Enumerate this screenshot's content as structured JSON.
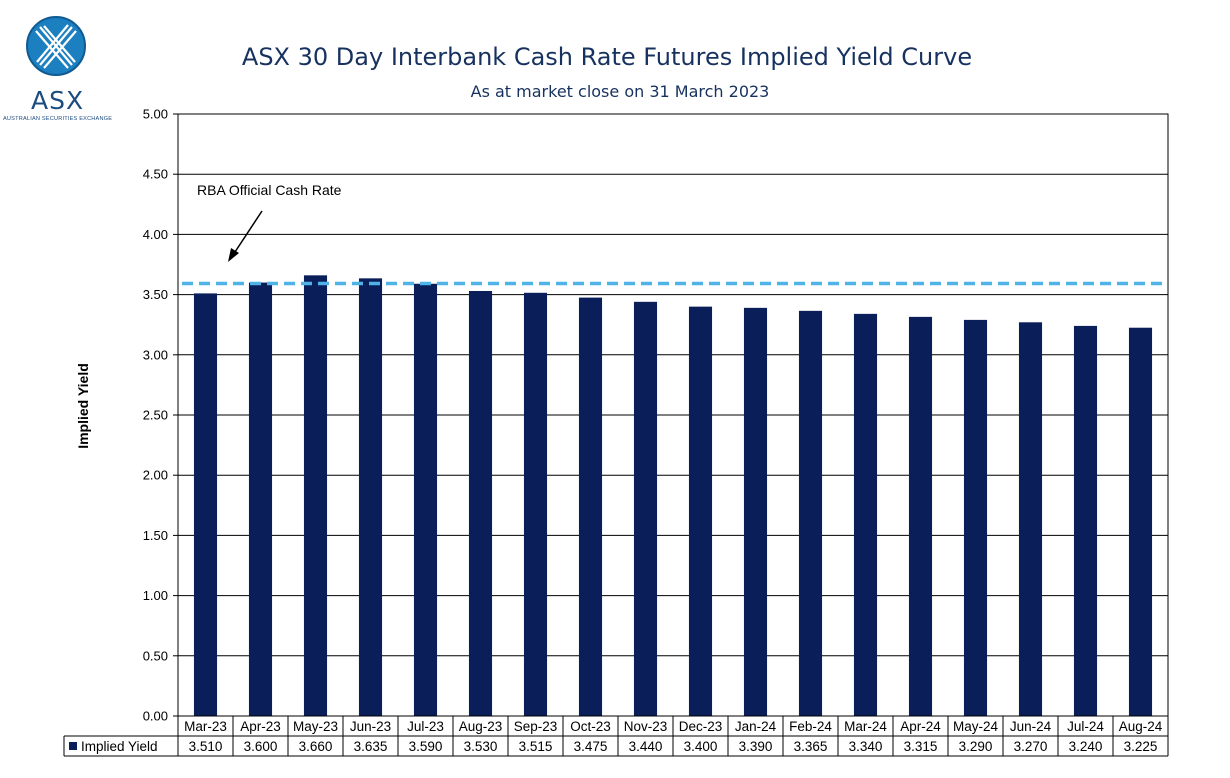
{
  "logo": {
    "text": "ASX",
    "subtitle": "AUSTRALIAN SECURITIES EXCHANGE",
    "color": "#1b4c80",
    "icon": "asx-x-icon"
  },
  "chart_data": {
    "type": "bar",
    "title": "ASX 30 Day Interbank Cash Rate Futures Implied Yield Curve",
    "subtitle": "As at market close on 31 March 2023",
    "ylabel": "Implied Yield",
    "xlabel": "",
    "ylim": [
      0,
      5
    ],
    "ytick_step": 0.5,
    "ytick_labels": [
      "0.00",
      "0.50",
      "1.00",
      "1.50",
      "2.00",
      "2.50",
      "3.00",
      "3.50",
      "4.00",
      "4.50",
      "5.00"
    ],
    "grid": true,
    "categories": [
      "Mar-23",
      "Apr-23",
      "May-23",
      "Jun-23",
      "Jul-23",
      "Aug-23",
      "Sep-23",
      "Oct-23",
      "Nov-23",
      "Dec-23",
      "Jan-24",
      "Feb-24",
      "Mar-24",
      "Apr-24",
      "May-24",
      "Jun-24",
      "Jul-24",
      "Aug-24"
    ],
    "series": [
      {
        "name": "Implied Yield",
        "color": "#0a1e5a",
        "values": [
          3.51,
          3.6,
          3.66,
          3.635,
          3.59,
          3.53,
          3.515,
          3.475,
          3.44,
          3.4,
          3.39,
          3.365,
          3.34,
          3.315,
          3.29,
          3.27,
          3.24,
          3.225
        ],
        "labels": [
          "3.510",
          "3.600",
          "3.660",
          "3.635",
          "3.590",
          "3.530",
          "3.515",
          "3.475",
          "3.440",
          "3.400",
          "3.390",
          "3.365",
          "3.340",
          "3.315",
          "3.290",
          "3.270",
          "3.240",
          "3.225"
        ]
      }
    ],
    "reference_line": {
      "label": "RBA Official Cash Rate",
      "value": 3.6,
      "color": "#4fb3e8",
      "style": "dashed"
    },
    "data_table": true,
    "legend": "data-table"
  }
}
